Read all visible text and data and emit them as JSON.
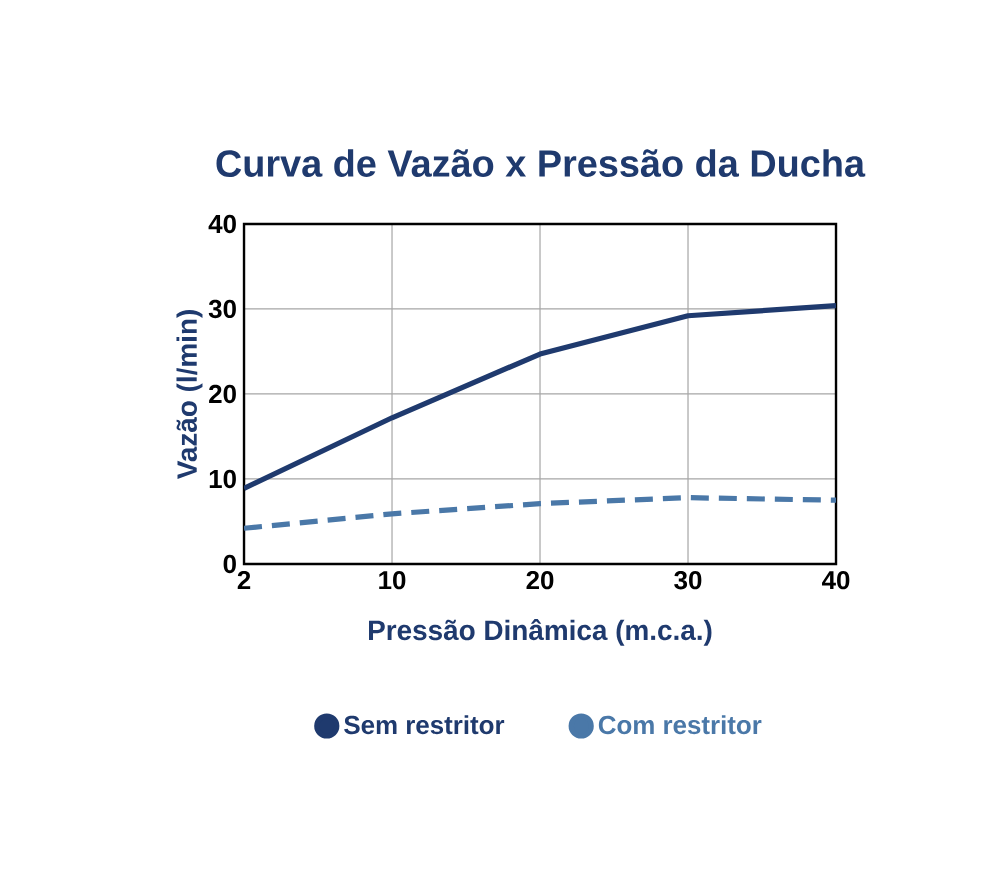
{
  "chart_data": {
    "type": "line",
    "title": "Curva de Vazão x Pressão da Ducha",
    "xlabel": "Pressão Dinâmica (m.c.a.)",
    "ylabel": "Vazão (l/min)",
    "categories": [
      "2",
      "10",
      "20",
      "30",
      "40"
    ],
    "series": [
      {
        "name": "Sem restritor",
        "color": "#1f3a6e",
        "line_style": "solid",
        "values": [
          8.9,
          17.2,
          24.7,
          29.2,
          30.4
        ]
      },
      {
        "name": "Com restritor",
        "color": "#4a78a8",
        "line_style": "dashed",
        "values": [
          4.2,
          5.9,
          7.1,
          7.8,
          7.5
        ]
      }
    ],
    "ylim": [
      0,
      40
    ],
    "yticks": [
      0,
      10,
      20,
      30,
      40
    ],
    "grid": true,
    "legend": "bottom",
    "marker": "none"
  }
}
